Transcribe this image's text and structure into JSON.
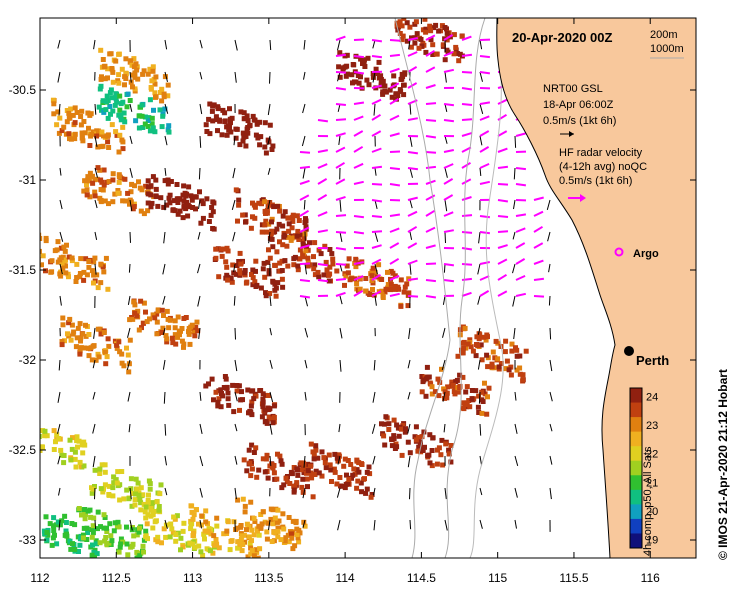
{
  "map": {
    "title": "20-Apr-2020 00Z",
    "depth_contours": [
      "200m",
      "1000m"
    ],
    "x_ticks": [
      "112",
      "112.5",
      "113",
      "113.5",
      "114",
      "114.5",
      "115",
      "115.5",
      "116"
    ],
    "y_ticks": [
      "-30.5",
      "-31",
      "-31.5",
      "-32",
      "-32.5",
      "-33"
    ],
    "lon_range": [
      112,
      116.3
    ],
    "lat_range": [
      -33.1,
      -30.1
    ],
    "land_color": "#f8c89c",
    "contour_color": "#aaaaaa"
  },
  "legend": {
    "model_line1": "NRT00 GSL",
    "model_line2": "18-Apr 06:00Z",
    "model_scale": "0.5m/s (1kt 6h)",
    "radar_line1": "HF radar velocity",
    "radar_line2": "(4-12h avg) noQC",
    "radar_scale": "0.5m/s (1kt 6h)",
    "argo_label": "Argo",
    "model_arrow_color": "#000000",
    "radar_arrow_color": "#ff00ff",
    "argo_color": "#ff00ff"
  },
  "places": {
    "city": "Perth"
  },
  "colorbar": {
    "ticks": [
      "24",
      "23",
      "22",
      "21",
      "20",
      "19"
    ],
    "caption": "4h comp, p50, All Sats",
    "range": [
      18.7,
      24.3
    ],
    "colors": [
      "#10107a",
      "#1040c0",
      "#10a0c0",
      "#10c080",
      "#30c030",
      "#a0d020",
      "#e0d020",
      "#f0b020",
      "#e08010",
      "#c04010",
      "#902010"
    ]
  },
  "credit": {
    "text": "© IMOS 21-Apr-2020 21:12 Hobart"
  },
  "sst_data": {
    "type": "heatmap",
    "units": "deg C",
    "patches": [
      {
        "lon": 112.15,
        "lat": -32.95,
        "sst": 20.8
      },
      {
        "lon": 112.45,
        "lat": -32.95,
        "sst": 21.2
      },
      {
        "lon": 112.55,
        "lat": -32.7,
        "sst": 21.8
      },
      {
        "lon": 112.9,
        "lat": -32.95,
        "sst": 22.0
      },
      {
        "lon": 113.2,
        "lat": -32.95,
        "sst": 22.6
      },
      {
        "lon": 113.5,
        "lat": -32.9,
        "sst": 22.9
      },
      {
        "lon": 112.05,
        "lat": -32.45,
        "sst": 22.0
      },
      {
        "lon": 113.3,
        "lat": -32.2,
        "sst": 24.0
      },
      {
        "lon": 113.55,
        "lat": -32.6,
        "sst": 23.7
      },
      {
        "lon": 113.95,
        "lat": -32.6,
        "sst": 23.8
      },
      {
        "lon": 114.45,
        "lat": -32.45,
        "sst": 23.9
      },
      {
        "lon": 114.7,
        "lat": -32.15,
        "sst": 23.6
      },
      {
        "lon": 114.95,
        "lat": -31.95,
        "sst": 23.5
      },
      {
        "lon": 112.35,
        "lat": -31.9,
        "sst": 23.0
      },
      {
        "lon": 112.8,
        "lat": -31.8,
        "sst": 23.2
      },
      {
        "lon": 113.35,
        "lat": -31.5,
        "sst": 23.8
      },
      {
        "lon": 113.7,
        "lat": -31.4,
        "sst": 23.6
      },
      {
        "lon": 114.2,
        "lat": -31.55,
        "sst": 23.4
      },
      {
        "lon": 112.2,
        "lat": -31.45,
        "sst": 23.0
      },
      {
        "lon": 112.5,
        "lat": -31.05,
        "sst": 23.1
      },
      {
        "lon": 112.9,
        "lat": -31.1,
        "sst": 24.2
      },
      {
        "lon": 113.5,
        "lat": -31.2,
        "sst": 23.6
      },
      {
        "lon": 113.3,
        "lat": -30.7,
        "sst": 24.3
      },
      {
        "lon": 112.3,
        "lat": -30.7,
        "sst": 23.0
      },
      {
        "lon": 112.6,
        "lat": -30.4,
        "sst": 22.8
      },
      {
        "lon": 114.15,
        "lat": -30.4,
        "sst": 24.3
      },
      {
        "lon": 114.55,
        "lat": -30.2,
        "sst": 23.8
      },
      {
        "lon": 112.6,
        "lat": -30.6,
        "sst": 20.5
      }
    ]
  },
  "current_data": {
    "model_vectors": "grid, shown as black arrows",
    "radar_vectors": "coastal region, shown as magenta arrows"
  }
}
